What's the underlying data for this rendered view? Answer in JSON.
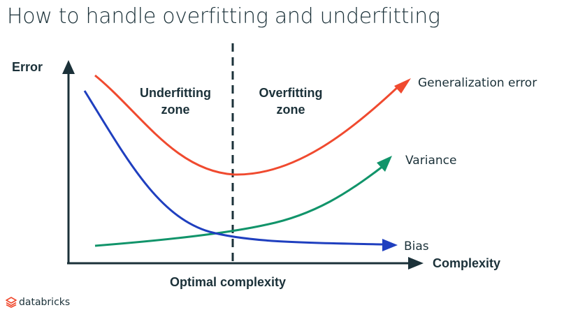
{
  "title": "How to handle overfitting and underfitting",
  "axes": {
    "y_label": "Error",
    "x_label": "Complexity"
  },
  "zones": {
    "underfitting_line1": "Underfitting",
    "underfitting_line2": "zone",
    "overfitting_line1": "Overfitting",
    "overfitting_line2": "zone"
  },
  "optimal_label": "Optimal complexity",
  "curves": {
    "generalization": {
      "label": "Generalization error",
      "color": "#f04a2f"
    },
    "variance": {
      "label": "Variance",
      "color": "#11946a"
    },
    "bias": {
      "label": "Bias",
      "color": "#1f3fbf"
    }
  },
  "axis_color": "#1b3139",
  "brand": {
    "name": "databricks",
    "icon": "databricks-logo-icon",
    "color": "#f04a2f"
  }
}
